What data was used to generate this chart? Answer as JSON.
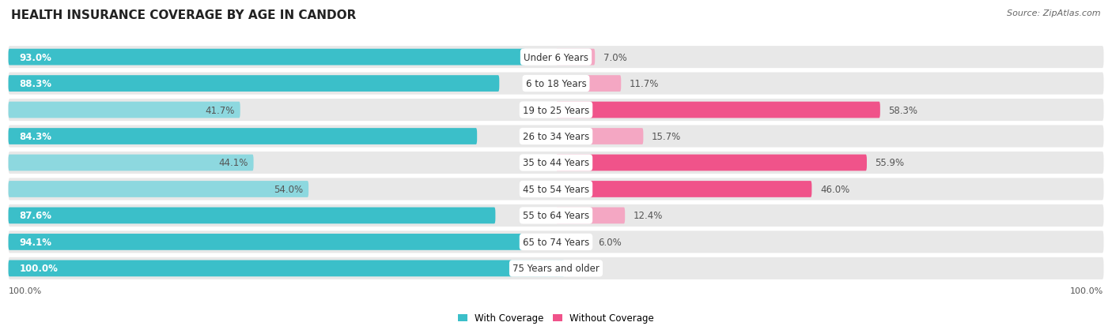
{
  "title": "HEALTH INSURANCE COVERAGE BY AGE IN CANDOR",
  "source": "Source: ZipAtlas.com",
  "categories": [
    "Under 6 Years",
    "6 to 18 Years",
    "19 to 25 Years",
    "26 to 34 Years",
    "35 to 44 Years",
    "45 to 54 Years",
    "55 to 64 Years",
    "65 to 74 Years",
    "75 Years and older"
  ],
  "with_coverage": [
    93.0,
    88.3,
    41.7,
    84.3,
    44.1,
    54.0,
    87.6,
    94.1,
    100.0
  ],
  "without_coverage": [
    7.0,
    11.7,
    58.3,
    15.7,
    55.9,
    46.0,
    12.4,
    6.0,
    0.0
  ],
  "color_with_dark": "#3bbfc9",
  "color_with_light": "#8dd8df",
  "color_without_dark": "#f0538a",
  "color_without_light": "#f4a7c3",
  "row_bg": "#e8e8e8",
  "title_fontsize": 11,
  "label_fontsize": 8.5,
  "legend_fontsize": 8.5,
  "source_fontsize": 8,
  "bar_height": 0.62,
  "x_max": 100,
  "without_dark_threshold": 20,
  "with_dark_threshold": 60
}
